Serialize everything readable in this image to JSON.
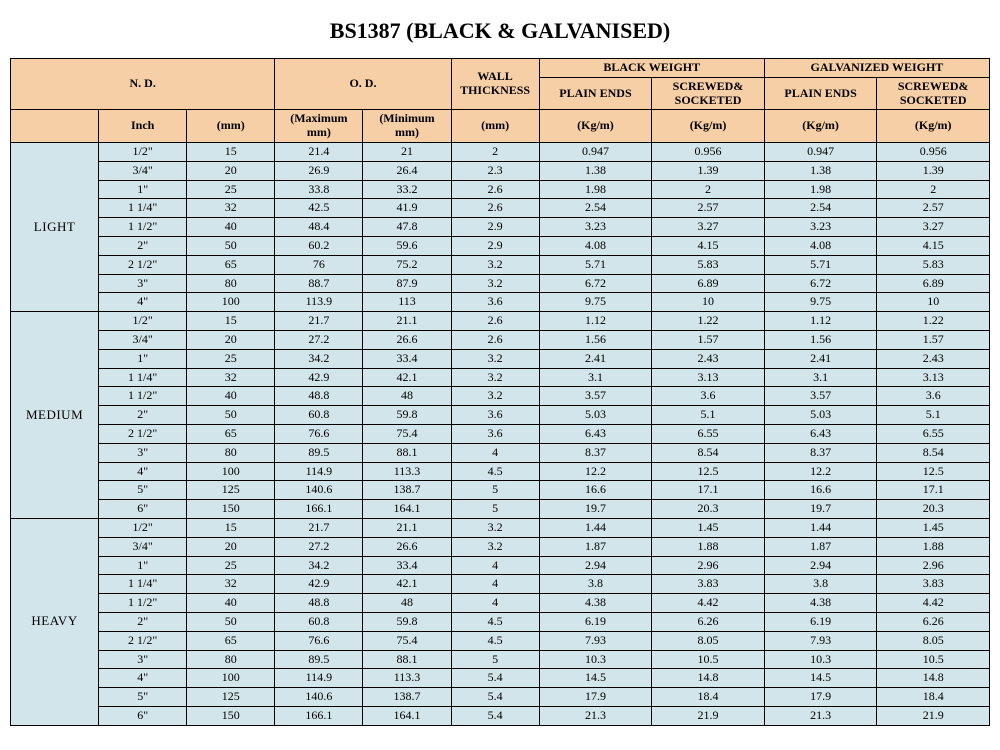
{
  "title": "BS1387 (BLACK & GALVANISED)",
  "colors": {
    "header_bg": "#f7cfa6",
    "body_bg": "#d2e5ea",
    "border": "#000000",
    "text": "#000000"
  },
  "fonts": {
    "title_size_pt": 22,
    "header_size_pt": 12,
    "cell_size_pt": 12,
    "family": "Times New Roman"
  },
  "header": {
    "nd": "N. D.",
    "od": "O. D.",
    "wall": "WALL THICKNESS",
    "black_weight": "BLACK WEIGHT",
    "galv_weight": "GALVANIZED WEIGHT",
    "plain_ends": "PLAIN ENDS",
    "screwed": "SCREWED& SOCKETED",
    "inch": "Inch",
    "mm": "(mm)",
    "max_mm": "(Maximum mm)",
    "min_mm": "(Minimum mm)",
    "unit_mm": "(mm)",
    "unit_kgm": "(Kg/m)"
  },
  "col_widths_pct": [
    9,
    9,
    9,
    9,
    9,
    9,
    11.5,
    11.5,
    11.5,
    11.5
  ],
  "categories": [
    {
      "name": "LIGHT",
      "rows": [
        [
          "1/2\"",
          "15",
          "21.4",
          "21",
          "2",
          "0.947",
          "0.956",
          "0.947",
          "0.956"
        ],
        [
          "3/4\"",
          "20",
          "26.9",
          "26.4",
          "2.3",
          "1.38",
          "1.39",
          "1.38",
          "1.39"
        ],
        [
          "1\"",
          "25",
          "33.8",
          "33.2",
          "2.6",
          "1.98",
          "2",
          "1.98",
          "2"
        ],
        [
          "1 1/4\"",
          "32",
          "42.5",
          "41.9",
          "2.6",
          "2.54",
          "2.57",
          "2.54",
          "2.57"
        ],
        [
          "1 1/2\"",
          "40",
          "48.4",
          "47.8",
          "2.9",
          "3.23",
          "3.27",
          "3.23",
          "3.27"
        ],
        [
          "2\"",
          "50",
          "60.2",
          "59.6",
          "2.9",
          "4.08",
          "4.15",
          "4.08",
          "4.15"
        ],
        [
          "2 1/2\"",
          "65",
          "76",
          "75.2",
          "3.2",
          "5.71",
          "5.83",
          "5.71",
          "5.83"
        ],
        [
          "3\"",
          "80",
          "88.7",
          "87.9",
          "3.2",
          "6.72",
          "6.89",
          "6.72",
          "6.89"
        ],
        [
          "4\"",
          "100",
          "113.9",
          "113",
          "3.6",
          "9.75",
          "10",
          "9.75",
          "10"
        ]
      ]
    },
    {
      "name": "MEDIUM",
      "rows": [
        [
          "1/2\"",
          "15",
          "21.7",
          "21.1",
          "2.6",
          "1.12",
          "1.22",
          "1.12",
          "1.22"
        ],
        [
          "3/4\"",
          "20",
          "27.2",
          "26.6",
          "2.6",
          "1.56",
          "1.57",
          "1.56",
          "1.57"
        ],
        [
          "1\"",
          "25",
          "34.2",
          "33.4",
          "3.2",
          "2.41",
          "2.43",
          "2.41",
          "2.43"
        ],
        [
          "1 1/4\"",
          "32",
          "42.9",
          "42.1",
          "3.2",
          "3.1",
          "3.13",
          "3.1",
          "3.13"
        ],
        [
          "1 1/2\"",
          "40",
          "48.8",
          "48",
          "3.2",
          "3.57",
          "3.6",
          "3.57",
          "3.6"
        ],
        [
          "2\"",
          "50",
          "60.8",
          "59.8",
          "3.6",
          "5.03",
          "5.1",
          "5.03",
          "5.1"
        ],
        [
          "2 1/2\"",
          "65",
          "76.6",
          "75.4",
          "3.6",
          "6.43",
          "6.55",
          "6.43",
          "6.55"
        ],
        [
          "3\"",
          "80",
          "89.5",
          "88.1",
          "4",
          "8.37",
          "8.54",
          "8.37",
          "8.54"
        ],
        [
          "4\"",
          "100",
          "114.9",
          "113.3",
          "4.5",
          "12.2",
          "12.5",
          "12.2",
          "12.5"
        ],
        [
          "5\"",
          "125",
          "140.6",
          "138.7",
          "5",
          "16.6",
          "17.1",
          "16.6",
          "17.1"
        ],
        [
          "6\"",
          "150",
          "166.1",
          "164.1",
          "5",
          "19.7",
          "20.3",
          "19.7",
          "20.3"
        ]
      ]
    },
    {
      "name": "HEAVY",
      "rows": [
        [
          "1/2\"",
          "15",
          "21.7",
          "21.1",
          "3.2",
          "1.44",
          "1.45",
          "1.44",
          "1.45"
        ],
        [
          "3/4\"",
          "20",
          "27.2",
          "26.6",
          "3.2",
          "1.87",
          "1.88",
          "1.87",
          "1.88"
        ],
        [
          "1\"",
          "25",
          "34.2",
          "33.4",
          "4",
          "2.94",
          "2.96",
          "2.94",
          "2.96"
        ],
        [
          "1 1/4\"",
          "32",
          "42.9",
          "42.1",
          "4",
          "3.8",
          "3.83",
          "3.8",
          "3.83"
        ],
        [
          "1 1/2\"",
          "40",
          "48.8",
          "48",
          "4",
          "4.38",
          "4.42",
          "4.38",
          "4.42"
        ],
        [
          "2\"",
          "50",
          "60.8",
          "59.8",
          "4.5",
          "6.19",
          "6.26",
          "6.19",
          "6.26"
        ],
        [
          "2 1/2\"",
          "65",
          "76.6",
          "75.4",
          "4.5",
          "7.93",
          "8.05",
          "7.93",
          "8.05"
        ],
        [
          "3\"",
          "80",
          "89.5",
          "88.1",
          "5",
          "10.3",
          "10.5",
          "10.3",
          "10.5"
        ],
        [
          "4\"",
          "100",
          "114.9",
          "113.3",
          "5.4",
          "14.5",
          "14.8",
          "14.5",
          "14.8"
        ],
        [
          "5\"",
          "125",
          "140.6",
          "138.7",
          "5.4",
          "17.9",
          "18.4",
          "17.9",
          "18.4"
        ],
        [
          "6\"",
          "150",
          "166.1",
          "164.1",
          "5.4",
          "21.3",
          "21.9",
          "21.3",
          "21.9"
        ]
      ]
    }
  ]
}
